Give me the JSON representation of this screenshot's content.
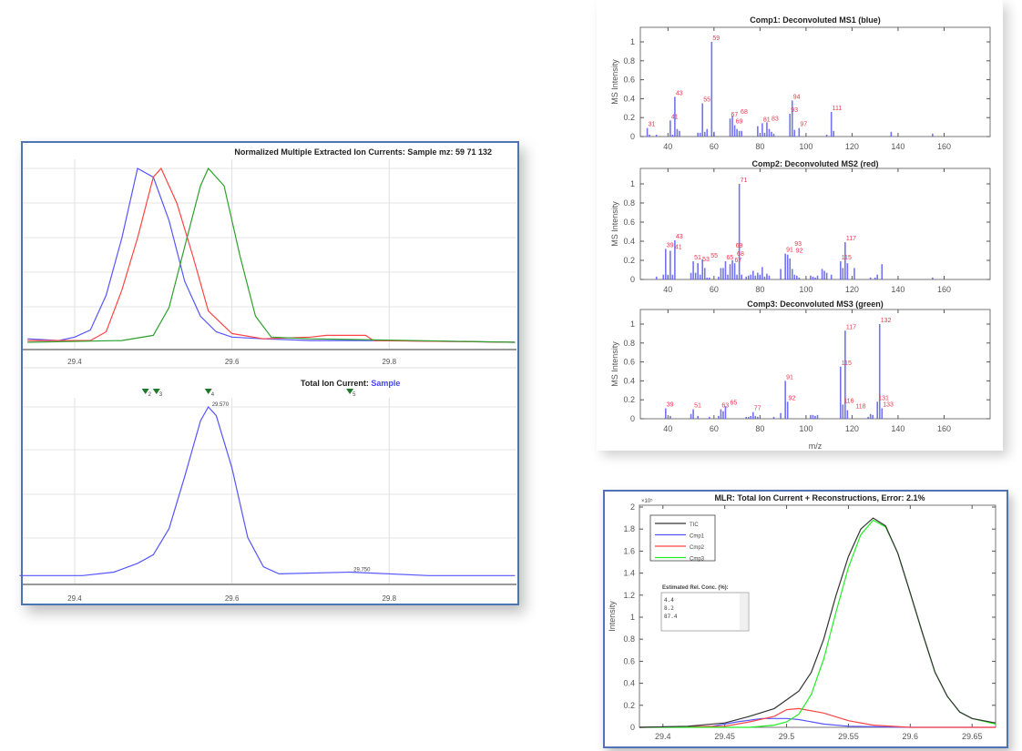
{
  "colors": {
    "frame_border": "#4f74b4",
    "spectrum_bar": "#5a5af0",
    "peak_label": "#e8384f",
    "blue": "#5555ff",
    "red": "#ff4444",
    "green": "#2ca02c",
    "tic": "#333333",
    "cmp3": "#22ee22"
  },
  "chart_data": [
    {
      "id": "eic",
      "type": "line",
      "title": "Normalized Multiple Extracted Ion Currents: Sample mz: 59  71  132",
      "x_ticks": [
        "29.4",
        "29.6",
        "29.8"
      ],
      "xlim": [
        29.334,
        29.963
      ],
      "ylim": [
        0,
        1
      ],
      "grid": true,
      "series": [
        {
          "color": "blue",
          "x": [
            29.34,
            29.38,
            29.4,
            29.42,
            29.44,
            29.46,
            29.48,
            29.5,
            29.52,
            29.54,
            29.56,
            29.58,
            29.6,
            29.64,
            29.7,
            29.8,
            29.96
          ],
          "y": [
            0.02,
            0.01,
            0.03,
            0.07,
            0.27,
            0.6,
            1.0,
            0.95,
            0.7,
            0.35,
            0.15,
            0.06,
            0.03,
            0.02,
            0.01,
            0.01,
            0.0
          ]
        },
        {
          "color": "red",
          "x": [
            29.34,
            29.42,
            29.44,
            29.46,
            29.48,
            29.5,
            29.51,
            29.53,
            29.55,
            29.57,
            29.6,
            29.64,
            29.7,
            29.72,
            29.77,
            29.78,
            29.96
          ],
          "y": [
            0.01,
            0.01,
            0.06,
            0.3,
            0.6,
            0.95,
            1.0,
            0.8,
            0.5,
            0.18,
            0.05,
            0.02,
            0.03,
            0.04,
            0.04,
            0.01,
            0.0
          ]
        },
        {
          "color": "green",
          "x": [
            29.34,
            29.46,
            29.5,
            29.52,
            29.54,
            29.56,
            29.57,
            29.59,
            29.61,
            29.63,
            29.65,
            29.7,
            29.96
          ],
          "y": [
            0.0,
            0.01,
            0.04,
            0.2,
            0.55,
            0.9,
            1.0,
            0.9,
            0.5,
            0.15,
            0.03,
            0.02,
            0.0
          ]
        }
      ]
    },
    {
      "id": "tic",
      "type": "line",
      "title": "Total Ion Current: ",
      "title_sample": "Sample",
      "x_ticks": [
        "29.4",
        "29.6",
        "29.8"
      ],
      "xlim": [
        29.334,
        29.963
      ],
      "ylim": [
        0,
        1
      ],
      "grid": true,
      "series": [
        {
          "color": "blue",
          "x": [
            29.33,
            29.41,
            29.45,
            29.48,
            29.5,
            29.52,
            29.54,
            29.56,
            29.57,
            29.58,
            29.6,
            29.62,
            29.64,
            29.66,
            29.75,
            29.85,
            29.96
          ],
          "y": [
            0.03,
            0.03,
            0.05,
            0.1,
            0.15,
            0.3,
            0.6,
            0.92,
            1.0,
            0.95,
            0.65,
            0.25,
            0.08,
            0.04,
            0.05,
            0.03,
            0.03
          ]
        }
      ],
      "annotations": [
        {
          "x": 29.57,
          "y": 1.0,
          "text": "29.570"
        },
        {
          "x": 29.75,
          "y": 0.05,
          "text": "29.750"
        }
      ],
      "markers": [
        {
          "x": 29.49,
          "text": "2"
        },
        {
          "x": 29.504,
          "text": "3"
        },
        {
          "x": 29.57,
          "text": "4"
        },
        {
          "x": 29.75,
          "text": "5"
        }
      ]
    },
    {
      "id": "ms1",
      "type": "bar",
      "title": "Comp1: Deconvoluted MS1 (blue)",
      "ylabel": "MS Intensity",
      "xlim": [
        28,
        180
      ],
      "ylim": [
        0,
        1.15
      ],
      "x_ticks": [
        "40",
        "60",
        "80",
        "100",
        "120",
        "140",
        "160"
      ],
      "y_ticks": [
        "0",
        "0.2",
        "0.4",
        "0.6",
        "0.8",
        "1"
      ],
      "bars": [
        [
          31,
          0.09
        ],
        [
          32,
          0.02
        ],
        [
          35,
          0.02
        ],
        [
          41,
          0.17
        ],
        [
          42,
          0.02
        ],
        [
          43,
          0.42
        ],
        [
          44,
          0.08
        ],
        [
          45,
          0.06
        ],
        [
          53,
          0.04
        ],
        [
          54,
          0.04
        ],
        [
          55,
          0.35
        ],
        [
          56,
          0.05
        ],
        [
          57,
          0.08
        ],
        [
          59,
          1.0
        ],
        [
          60,
          0.05
        ],
        [
          67,
          0.19
        ],
        [
          68,
          0.22
        ],
        [
          69,
          0.12
        ],
        [
          70,
          0.08
        ],
        [
          71,
          0.06
        ],
        [
          72,
          0.06
        ],
        [
          79,
          0.11
        ],
        [
          81,
          0.14
        ],
        [
          82,
          0.04
        ],
        [
          83,
          0.15
        ],
        [
          84,
          0.08
        ],
        [
          85,
          0.05
        ],
        [
          86,
          0.03
        ],
        [
          93,
          0.24
        ],
        [
          94,
          0.38
        ],
        [
          95,
          0.07
        ],
        [
          97,
          0.09
        ],
        [
          109,
          0.02
        ],
        [
          111,
          0.26
        ],
        [
          112,
          0.06
        ],
        [
          137,
          0.05
        ],
        [
          155,
          0.03
        ]
      ],
      "labels": [
        31,
        41,
        43,
        55,
        59,
        67,
        68,
        69,
        81,
        83,
        93,
        94,
        97,
        111
      ]
    },
    {
      "id": "ms2",
      "type": "bar",
      "title": "Comp2: Deconvoluted MS2 (red)",
      "ylabel": "MS Intensity",
      "xlim": [
        28,
        180
      ],
      "ylim": [
        0,
        1.15
      ],
      "x_ticks": [
        "40",
        "60",
        "80",
        "100",
        "120",
        "140",
        "160"
      ],
      "y_ticks": [
        "0",
        "0.2",
        "0.4",
        "0.6",
        "0.8",
        "1"
      ],
      "bars": [
        [
          35,
          0.03
        ],
        [
          38,
          0.05
        ],
        [
          39,
          0.32
        ],
        [
          40,
          0.05
        ],
        [
          41,
          0.3
        ],
        [
          42,
          0.05
        ],
        [
          43,
          0.41
        ],
        [
          50,
          0.07
        ],
        [
          51,
          0.19
        ],
        [
          52,
          0.07
        ],
        [
          53,
          0.17
        ],
        [
          54,
          0.05
        ],
        [
          55,
          0.21
        ],
        [
          56,
          0.12
        ],
        [
          57,
          0.02
        ],
        [
          58,
          0.02
        ],
        [
          62,
          0.03
        ],
        [
          63,
          0.12
        ],
        [
          64,
          0.12
        ],
        [
          65,
          0.19
        ],
        [
          66,
          0.05
        ],
        [
          67,
          0.16
        ],
        [
          68,
          0.2
        ],
        [
          69,
          0.17
        ],
        [
          70,
          0.05
        ],
        [
          71,
          1.0
        ],
        [
          72,
          0.05
        ],
        [
          74,
          0.03
        ],
        [
          75,
          0.04
        ],
        [
          76,
          0.05
        ],
        [
          77,
          0.09
        ],
        [
          78,
          0.04
        ],
        [
          79,
          0.07
        ],
        [
          80,
          0.05
        ],
        [
          81,
          0.13
        ],
        [
          82,
          0.03
        ],
        [
          83,
          0.06
        ],
        [
          84,
          0.04
        ],
        [
          89,
          0.11
        ],
        [
          91,
          0.27
        ],
        [
          92,
          0.26
        ],
        [
          93,
          0.22
        ],
        [
          94,
          0.11
        ],
        [
          95,
          0.05
        ],
        [
          96,
          0.04
        ],
        [
          97,
          0.02
        ],
        [
          102,
          0.04
        ],
        [
          103,
          0.03
        ],
        [
          104,
          0.02
        ],
        [
          105,
          0.04
        ],
        [
          107,
          0.11
        ],
        [
          108,
          0.09
        ],
        [
          109,
          0.07
        ],
        [
          111,
          0.05
        ],
        [
          115,
          0.19
        ],
        [
          116,
          0.12
        ],
        [
          117,
          0.39
        ],
        [
          118,
          0.17
        ],
        [
          121,
          0.12
        ],
        [
          128,
          0.02
        ],
        [
          130,
          0.02
        ],
        [
          131,
          0.05
        ],
        [
          133,
          0.16
        ],
        [
          155,
          0.02
        ]
      ],
      "labels": [
        39,
        41,
        43,
        51,
        53,
        55,
        65,
        67,
        68,
        69,
        71,
        91,
        92,
        93,
        115,
        117
      ]
    },
    {
      "id": "ms3",
      "type": "bar",
      "title": "Comp3: Deconvoluted MS3 (green)",
      "ylabel": "MS Intensity",
      "xlabel": "m/z",
      "xlim": [
        28,
        180
      ],
      "ylim": [
        0,
        1.15
      ],
      "x_ticks": [
        "40",
        "60",
        "80",
        "100",
        "120",
        "140",
        "160"
      ],
      "y_ticks": [
        "0",
        "0.2",
        "0.4",
        "0.6",
        "0.8",
        "1"
      ],
      "bars": [
        [
          39,
          0.11
        ],
        [
          41,
          0.03
        ],
        [
          50,
          0.05
        ],
        [
          51,
          0.1
        ],
        [
          53,
          0.03
        ],
        [
          58,
          0.02
        ],
        [
          62,
          0.03
        ],
        [
          63,
          0.1
        ],
        [
          64,
          0.08
        ],
        [
          65,
          0.13
        ],
        [
          74,
          0.02
        ],
        [
          75,
          0.02
        ],
        [
          76,
          0.03
        ],
        [
          77,
          0.07
        ],
        [
          78,
          0.03
        ],
        [
          79,
          0.02
        ],
        [
          86,
          0.02
        ],
        [
          89,
          0.06
        ],
        [
          91,
          0.4
        ],
        [
          92,
          0.18
        ],
        [
          102,
          0.04
        ],
        [
          103,
          0.04
        ],
        [
          104,
          0.03
        ],
        [
          105,
          0.04
        ],
        [
          115,
          0.55
        ],
        [
          116,
          0.15
        ],
        [
          117,
          0.93
        ],
        [
          118,
          0.09
        ],
        [
          127,
          0.02
        ],
        [
          128,
          0.05
        ],
        [
          129,
          0.04
        ],
        [
          131,
          0.18
        ],
        [
          132,
          1.0
        ],
        [
          133,
          0.11
        ]
      ],
      "labels": [
        39,
        51,
        63,
        65,
        77,
        91,
        92,
        115,
        116,
        117,
        118,
        131,
        132,
        133
      ]
    },
    {
      "id": "mlr",
      "type": "line",
      "title": "MLR: Total Ion Current + Reconstructions, Error: 2.1%",
      "ylabel": "Intensity",
      "y_exponent": "×10⁵",
      "xlim": [
        29.381,
        29.669
      ],
      "ylim": [
        0,
        2
      ],
      "x_ticks": [
        "29.4",
        "29.45",
        "29.5",
        "29.55",
        "29.6",
        "29.65"
      ],
      "y_ticks": [
        "0",
        "0.2",
        "0.4",
        "0.6",
        "0.8",
        "1",
        "1.2",
        "1.4",
        "1.6",
        "1.8",
        "2"
      ],
      "legend_position": "top-left",
      "series": [
        {
          "name": "TIC",
          "color": "tic",
          "x": [
            29.381,
            29.42,
            29.45,
            29.47,
            29.49,
            29.5,
            29.51,
            29.52,
            29.53,
            29.54,
            29.55,
            29.56,
            29.57,
            29.58,
            29.59,
            29.6,
            29.61,
            29.62,
            29.63,
            29.64,
            29.65,
            29.669
          ],
          "y": [
            0,
            0.01,
            0.04,
            0.1,
            0.17,
            0.25,
            0.33,
            0.5,
            0.8,
            1.2,
            1.55,
            1.8,
            1.9,
            1.83,
            1.58,
            1.22,
            0.85,
            0.5,
            0.28,
            0.14,
            0.08,
            0.04
          ]
        },
        {
          "name": "Cmp1",
          "color": "blue",
          "x": [
            29.381,
            29.44,
            29.46,
            29.48,
            29.5,
            29.51,
            29.53,
            29.55,
            29.6,
            29.669
          ],
          "y": [
            0,
            0.01,
            0.05,
            0.08,
            0.08,
            0.07,
            0.03,
            0.01,
            0,
            0
          ]
        },
        {
          "name": "Cmp2",
          "color": "red",
          "x": [
            29.381,
            29.45,
            29.47,
            29.49,
            29.5,
            29.51,
            29.53,
            29.55,
            29.57,
            29.6,
            29.669
          ],
          "y": [
            0,
            0.01,
            0.05,
            0.1,
            0.16,
            0.17,
            0.13,
            0.06,
            0.02,
            0,
            0
          ]
        },
        {
          "name": "Cmp3",
          "color": "cmp3",
          "x": [
            29.381,
            29.47,
            29.49,
            29.5,
            29.51,
            29.52,
            29.53,
            29.54,
            29.55,
            29.56,
            29.57,
            29.58,
            29.59,
            29.6,
            29.61,
            29.62,
            29.63,
            29.64,
            29.65,
            29.669
          ],
          "y": [
            0,
            0,
            0.02,
            0.05,
            0.12,
            0.3,
            0.62,
            1.05,
            1.45,
            1.75,
            1.88,
            1.82,
            1.58,
            1.22,
            0.85,
            0.5,
            0.28,
            0.14,
            0.08,
            0.03
          ]
        }
      ],
      "conc_box": {
        "label": "Estimated Rel. Conc. (%):",
        "values": [
          "4.4",
          "8.2",
          "87.4"
        ]
      }
    }
  ]
}
